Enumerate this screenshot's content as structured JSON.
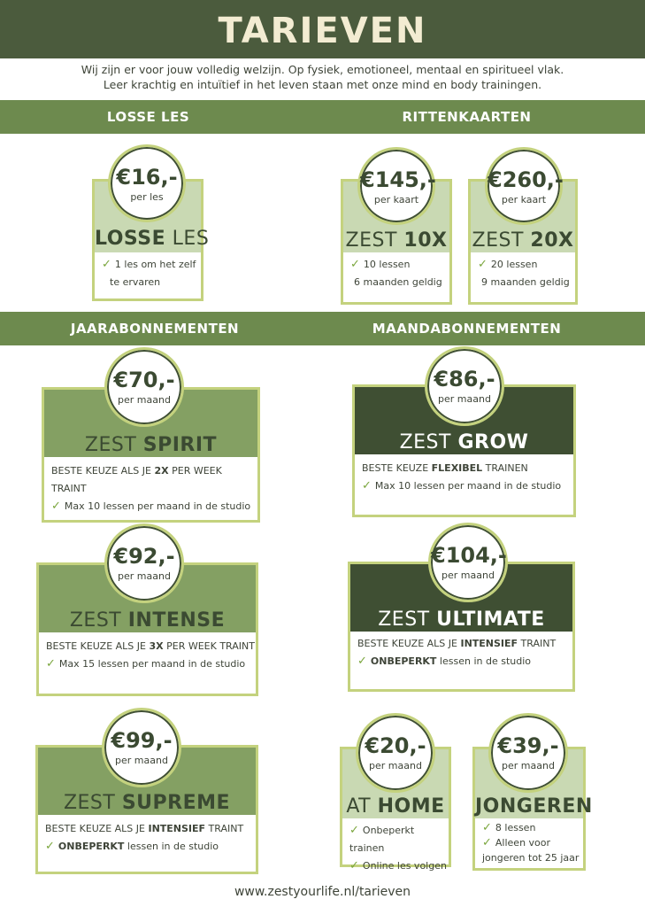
{
  "header": {
    "title": "TARIEVEN"
  },
  "intro": {
    "line1": "Wij zijn er voor jouw volledig welzijn. Op fysiek, emotioneel, mentaal en spiritueel vlak.",
    "line2": "Leer krachtig en intuïtief in het leven staan met onze mind en body trainingen."
  },
  "sections": {
    "losse_les": "LOSSE LES",
    "rittenkaarten": "RITTENKAARTEN",
    "jaarabonnementen": "JAARABONNEMENTEN",
    "maandabonnementen": "MAANDABONNEMENTEN"
  },
  "cards": {
    "losse": {
      "price": "€16,-",
      "unit": "per les",
      "name_a": "LOSSE",
      "name_b": " LES",
      "line1": "1 les om het zelf",
      "line2": "te ervaren"
    },
    "zest10": {
      "price": "€145,-",
      "unit": "per kaart",
      "name_a": "ZEST ",
      "name_b": "10X",
      "line1": "10 lessen",
      "line2": "6 maanden geldig"
    },
    "zest20": {
      "price": "€260,-",
      "unit": "per kaart",
      "name_a": "ZEST ",
      "name_b": "20X",
      "line1": "20 lessen",
      "line2": "9 maanden geldig"
    },
    "spirit": {
      "price": "€70,-",
      "unit": "per maand",
      "name_a": "ZEST ",
      "name_b": "SPIRIT",
      "keuze_a": "BESTE KEUZE ALS JE ",
      "keuze_b": "2X",
      "keuze_c": " PER WEEK TRAINT",
      "line1": "Max 10 lessen per maand in de studio"
    },
    "grow": {
      "price": "€86,-",
      "unit": "per maand",
      "name_a": "ZEST ",
      "name_b": "GROW",
      "keuze_a": "BESTE KEUZE ",
      "keuze_b": "FLEXIBEL",
      "keuze_c": " TRAINEN",
      "line1": "Max 10 lessen per maand in de studio"
    },
    "intense": {
      "price": "€92,-",
      "unit": "per maand",
      "name_a": "ZEST ",
      "name_b": "INTENSE",
      "keuze_a": "BESTE KEUZE ALS JE ",
      "keuze_b": "3X",
      "keuze_c": " PER WEEK TRAINT",
      "line1": "Max 15 lessen per maand in de studio"
    },
    "ultimate": {
      "price": "€104,-",
      "unit": "per maand",
      "name_a": "ZEST ",
      "name_b": "ULTIMATE",
      "keuze_a": "BESTE KEUZE ALS JE ",
      "keuze_b": "INTENSIEF",
      "keuze_c": " TRAINT",
      "line1_b": "ONBEPERKT",
      "line1_c": " lessen in de studio"
    },
    "supreme": {
      "price": "€99,-",
      "unit": "per maand",
      "name_a": "ZEST ",
      "name_b": "SUPREME",
      "keuze_a": "BESTE KEUZE ALS JE ",
      "keuze_b": "INTENSIEF",
      "keuze_c": " TRAINT",
      "line1_b": "ONBEPERKT",
      "line1_c": " lessen in de studio"
    },
    "athome": {
      "price": "€20,-",
      "unit": "per maand",
      "name_a": "AT ",
      "name_b": "HOME",
      "line1": "Onbeperkt trainen",
      "line2": "Online les volgen"
    },
    "jongeren": {
      "price": "€39,-",
      "unit": "per maand",
      "name_b": "JONGEREN",
      "line1": "8 lessen",
      "line2": "Alleen voor",
      "line3": "jongeren tot 25 jaar"
    }
  },
  "footer": {
    "url": "www.zestyourlife.nl/tarieven"
  }
}
